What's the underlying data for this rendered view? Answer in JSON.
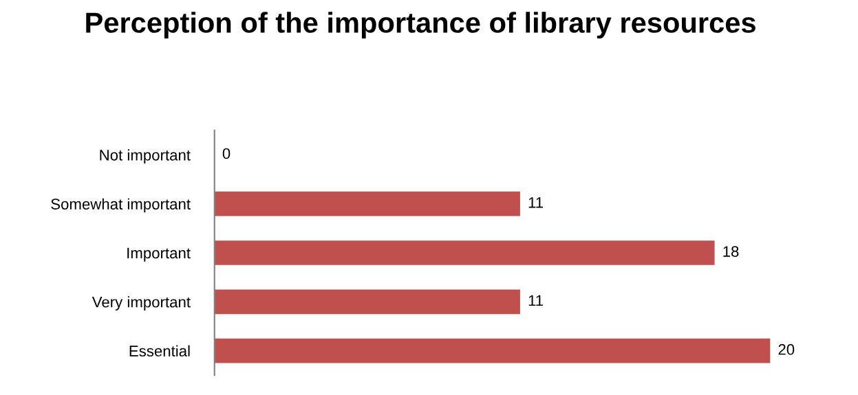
{
  "chart_data": {
    "type": "bar",
    "orientation": "horizontal",
    "title": "Perception of the importance of library resources",
    "categories": [
      "Not important",
      "Somewhat important",
      "Important",
      "Very important",
      "Essential"
    ],
    "values": [
      0,
      11,
      18,
      11,
      20
    ],
    "color": "#c0504d",
    "data_labels": true,
    "grid": false,
    "legend": false
  }
}
